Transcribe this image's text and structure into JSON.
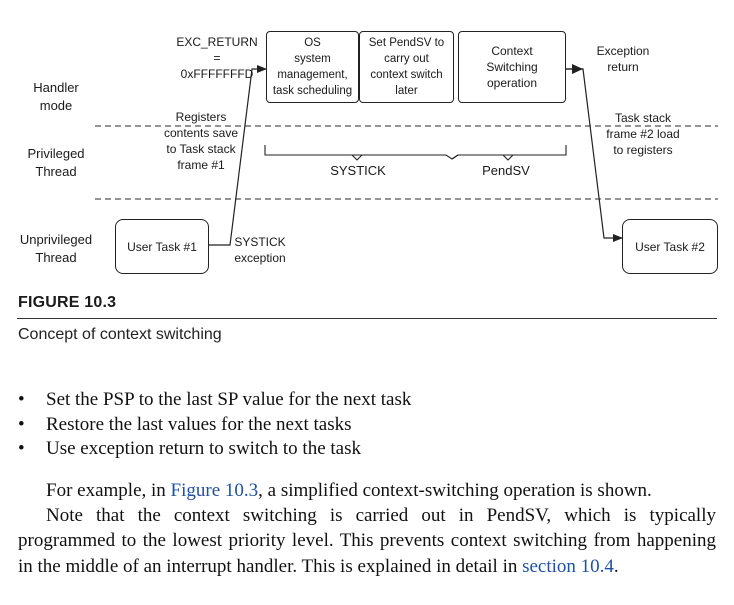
{
  "diagram": {
    "rows": {
      "handler": "Handler\nmode",
      "privileged": "Privileged\nThread",
      "unprivileged": "Unprivileged\nThread"
    },
    "boxes": {
      "os": "OS\nsystem\nmanagement,\ntask scheduling",
      "set_pendsv": "Set PendSV to\ncarry out\ncontext switch\nlater",
      "context_switching": "Context\nSwitching\noperation",
      "user_task_1": "User Task #1",
      "user_task_2": "User Task #2"
    },
    "labels": {
      "exc_return": "EXC_RETURN =\n0xFFFFFFFD",
      "registers_save": "Registers\ncontents save\nto Task stack\nframe #1",
      "systick_exception": "SYSTICK\nexception",
      "exception_return": "Exception\nreturn",
      "task_stack_load": "Task stack\nframe #2 load\nto registers",
      "brace_systick": "SYSTICK",
      "brace_pendsv": "PendSV"
    }
  },
  "figure": {
    "label": "FIGURE 10.3",
    "caption": "Concept of context switching"
  },
  "bullets": [
    "Set the PSP to the last SP value for the next task",
    "Restore the last values for the next tasks",
    "Use exception return to switch to the task"
  ],
  "bullet_symbol": "•",
  "paragraph": {
    "line1_pre": "For example, in ",
    "line1_link": "Figure 10.3",
    "line1_post": ", a simplified context-switching operation is shown.",
    "line2_pre": "Note that the context switching is carried out in PendSV, which is typically programmed to the lowest priority level. This prevents context switching from happening in the middle of an interrupt handler. This is explained in detail in ",
    "line2_link": "section 10.4",
    "line2_post": "."
  },
  "colors": {
    "link": "#1f4fa8",
    "text": "#111111",
    "lines": "#222222"
  }
}
